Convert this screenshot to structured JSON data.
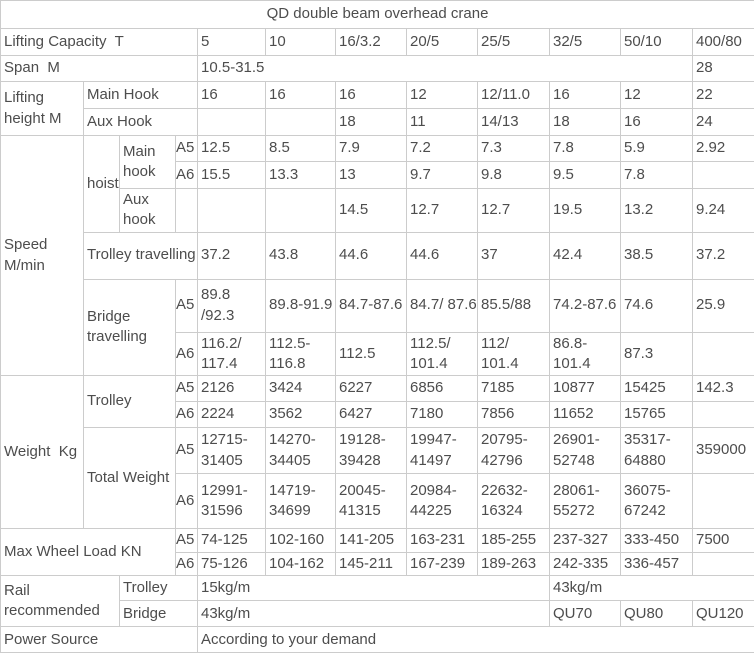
{
  "title": "QD double beam overhead crane",
  "grades": {
    "a5": "A5",
    "a6": "A6"
  },
  "capacity": {
    "label": "Lifting Capacity  T",
    "values": [
      "5",
      "10",
      "16/3.2",
      "20/5",
      "25/5",
      "32/5",
      "50/10",
      "400/80"
    ]
  },
  "span_row": {
    "label": "Span  M",
    "main": "10.5-31.5",
    "last": "28"
  },
  "lifting_height": {
    "label": "Lifting height M",
    "main_hook": {
      "label": "Main Hook",
      "values": [
        "16",
        "16",
        "16",
        "12",
        "12/11.0",
        "16",
        "12",
        "22"
      ]
    },
    "aux_hook": {
      "label": "Aux Hook",
      "values": [
        "",
        "",
        "18",
        "11",
        "14/13",
        "18",
        "16",
        "24"
      ]
    }
  },
  "speed": {
    "label": "Speed M/min",
    "hoist_label": "hoist",
    "main_hook_label": "Main hook",
    "aux_hook_label": "Aux hook",
    "hoist_main_a5": [
      "12.5",
      "8.5",
      "7.9",
      "7.2",
      "7.3",
      "7.8",
      "5.9",
      "2.92"
    ],
    "hoist_main_a6": [
      "15.5",
      "13.3",
      "13",
      "9.7",
      "9.8",
      "9.5",
      "7.8",
      ""
    ],
    "hoist_aux": [
      "",
      "",
      "14.5",
      "12.7",
      "12.7",
      "19.5",
      "13.2",
      "9.24"
    ],
    "trolley_travelling": {
      "label": "Trolley travelling",
      "values": [
        "37.2",
        "43.8",
        "44.6",
        "44.6",
        "37",
        "42.4",
        "38.5",
        "37.2"
      ]
    },
    "bridge_travelling": {
      "label": "Bridge travelling",
      "a5": [
        "89.8 /92.3",
        "89.8-91.9",
        "84.7-87.6",
        "84.7/ 87.6",
        "85.5/88",
        "74.2-87.6",
        "74.6",
        "25.9"
      ],
      "a6": [
        "116.2/ 117.4",
        "112.5- 116.8",
        "112.5",
        "112.5/ 101.4",
        "112/ 101.4",
        "86.8- 101.4",
        "87.3",
        ""
      ]
    }
  },
  "weight": {
    "label": "Weight  Kg",
    "trolley": {
      "label": "Trolley",
      "a5": [
        "2126",
        "3424",
        "6227",
        "6856",
        "7185",
        "10877",
        "15425",
        "142.3"
      ],
      "a6": [
        "2224",
        "3562",
        "6427",
        "7180",
        "7856",
        "11652",
        "15765",
        ""
      ]
    },
    "total": {
      "label": "Total Weight",
      "a5": [
        "12715- 31405",
        "14270- 34405",
        "19128- 39428",
        "19947- 41497",
        "20795- 42796",
        "26901- 52748",
        "35317- 64880",
        "359000"
      ],
      "a6": [
        "12991- 31596",
        "14719- 34699",
        "20045- 41315",
        "20984- 44225",
        "22632- 16324",
        "28061- 55272",
        "36075- 67242",
        ""
      ]
    }
  },
  "max_wheel_load": {
    "label": "Max Wheel Load KN",
    "a5": [
      "74-125",
      "102-160",
      "141-205",
      "163-231",
      "185-255",
      "237-327",
      "333-450",
      "7500"
    ],
    "a6": [
      "75-126",
      "104-162",
      "145-211",
      "167-239",
      "189-263",
      "242-335",
      "336-457",
      ""
    ]
  },
  "rail": {
    "label": "Rail recommended",
    "trolley": {
      "label": "Trolley",
      "left": "15kg/m",
      "right": "43kg/m"
    },
    "bridge": {
      "label": "Bridge",
      "left": "43kg/m",
      "qu": [
        "QU70",
        "QU80",
        "QU120"
      ]
    }
  },
  "power": {
    "label": "Power Source",
    "value": "According to your demand"
  },
  "colors": {
    "text": "#4d4d4d",
    "border": "#cccccc",
    "background": "#ffffff"
  }
}
